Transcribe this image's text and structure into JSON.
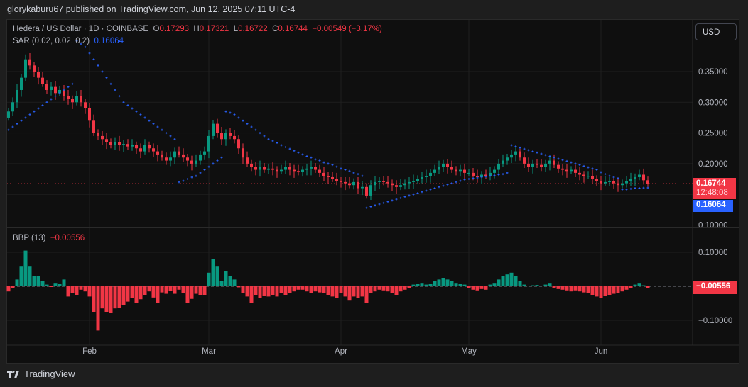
{
  "header": {
    "published": "glorykaburu67 published on TradingView.com, Jun 12, 2025 07:11 UTC-4"
  },
  "legend": {
    "symbol": "Hedera / US Dollar · 1D · COINBASE",
    "o_label": "O",
    "o": "0.17293",
    "h_label": "H",
    "h": "0.17321",
    "l_label": "L",
    "l": "0.16722",
    "c_label": "C",
    "c": "0.16744",
    "change": "−0.00549 (−3.17%)",
    "sar_label": "SAR (0.02, 0.02, 0.2)",
    "sar_value": "0.16064",
    "bbp_label": "BBP (13)",
    "bbp_value": "−0.00556"
  },
  "currency_button": "USD",
  "price_tag": {
    "value": "0.16744",
    "countdown": "12:48:08"
  },
  "sar_tag": "0.16064",
  "bbp_tag": "−0.00556",
  "footer": {
    "brand": "TradingView"
  },
  "colors": {
    "up": "#089981",
    "down": "#f23645",
    "sar": "#2962ff",
    "bg": "#0f0f0f"
  },
  "chart_data": {
    "type": "candlestick",
    "start_date": "2025-01-13",
    "interval": "1D",
    "price_axis": {
      "ticks": [
        "0.10000",
        "0.20000",
        "0.25000",
        "0.30000",
        "0.35000"
      ],
      "tick_values": [
        0.1,
        0.2,
        0.25,
        0.3,
        0.35
      ]
    },
    "bbp_axis": {
      "ticks": [
        "0.10000",
        "−0.10000"
      ],
      "tick_values": [
        0.1,
        -0.1
      ]
    },
    "time_axis": {
      "ticks": [
        "Feb",
        "Mar",
        "Apr",
        "May",
        "Jun"
      ],
      "tick_day_index": [
        19,
        47,
        78,
        108,
        139
      ]
    },
    "close": [
      0.285,
      0.3,
      0.32,
      0.34,
      0.37,
      0.36,
      0.35,
      0.34,
      0.33,
      0.32,
      0.325,
      0.315,
      0.32,
      0.31,
      0.305,
      0.3,
      0.31,
      0.3,
      0.29,
      0.27,
      0.25,
      0.245,
      0.24,
      0.235,
      0.23,
      0.235,
      0.23,
      0.232,
      0.228,
      0.23,
      0.225,
      0.22,
      0.23,
      0.225,
      0.22,
      0.215,
      0.21,
      0.205,
      0.21,
      0.22,
      0.215,
      0.21,
      0.205,
      0.2,
      0.205,
      0.215,
      0.22,
      0.245,
      0.265,
      0.25,
      0.24,
      0.25,
      0.245,
      0.24,
      0.225,
      0.21,
      0.2,
      0.195,
      0.19,
      0.195,
      0.19,
      0.192,
      0.19,
      0.188,
      0.19,
      0.195,
      0.19,
      0.188,
      0.186,
      0.19,
      0.192,
      0.195,
      0.19,
      0.185,
      0.18,
      0.178,
      0.175,
      0.172,
      0.17,
      0.168,
      0.165,
      0.17,
      0.16,
      0.162,
      0.148,
      0.165,
      0.17,
      0.172,
      0.17,
      0.168,
      0.165,
      0.162,
      0.165,
      0.168,
      0.17,
      0.172,
      0.175,
      0.178,
      0.18,
      0.185,
      0.19,
      0.195,
      0.2,
      0.195,
      0.19,
      0.188,
      0.19,
      0.185,
      0.185,
      0.18,
      0.178,
      0.182,
      0.18,
      0.185,
      0.19,
      0.2,
      0.205,
      0.21,
      0.215,
      0.22,
      0.21,
      0.2,
      0.195,
      0.2,
      0.198,
      0.195,
      0.2,
      0.205,
      0.198,
      0.192,
      0.19,
      0.188,
      0.19,
      0.185,
      0.182,
      0.18,
      0.18,
      0.175,
      0.172,
      0.168,
      0.17,
      0.172,
      0.168,
      0.165,
      0.168,
      0.172,
      0.175,
      0.178,
      0.182,
      0.17293,
      0.16744
    ],
    "sar": [
      0.255,
      0.26,
      0.265,
      0.27,
      0.275,
      0.28,
      0.285,
      0.29,
      0.295,
      0.3,
      0.305,
      0.31,
      0.315,
      0.32,
      0.325,
      0.33,
      0.4,
      0.395,
      0.39,
      0.38,
      0.37,
      0.36,
      0.35,
      0.34,
      0.33,
      0.32,
      0.31,
      0.3,
      0.295,
      0.29,
      0.285,
      0.28,
      0.275,
      0.27,
      0.265,
      0.26,
      0.255,
      0.25,
      0.245,
      0.24,
      0.17,
      0.172,
      0.175,
      0.178,
      0.18,
      0.185,
      0.19,
      0.195,
      0.2,
      0.205,
      0.21,
      0.285,
      0.283,
      0.28,
      0.275,
      0.27,
      0.265,
      0.26,
      0.255,
      0.25,
      0.245,
      0.24,
      0.237,
      0.234,
      0.23,
      0.227,
      0.224,
      0.221,
      0.218,
      0.215,
      0.212,
      0.21,
      0.207,
      0.205,
      0.202,
      0.2,
      0.198,
      0.195,
      0.192,
      0.19,
      0.188,
      0.185,
      0.183,
      0.18,
      0.128,
      0.13,
      0.132,
      0.134,
      0.136,
      0.138,
      0.14,
      0.142,
      0.144,
      0.146,
      0.148,
      0.15,
      0.152,
      0.154,
      0.156,
      0.158,
      0.16,
      0.162,
      0.164,
      0.166,
      0.168,
      0.17,
      0.172,
      0.174,
      0.175,
      0.176,
      0.177,
      0.178,
      0.179,
      0.18,
      0.181,
      0.182,
      0.183,
      0.185,
      0.23,
      0.228,
      0.226,
      0.224,
      0.222,
      0.22,
      0.218,
      0.216,
      0.214,
      0.212,
      0.21,
      0.208,
      0.206,
      0.204,
      0.202,
      0.2,
      0.198,
      0.196,
      0.194,
      0.192,
      0.19,
      0.186,
      0.183,
      0.18,
      0.178,
      0.176,
      0.158,
      0.158,
      0.159,
      0.16,
      0.16,
      0.1605,
      0.16064
    ],
    "bbp": [
      -0.015,
      -0.005,
      0.02,
      0.06,
      0.105,
      0.06,
      0.03,
      0.03,
      0.015,
      0.005,
      -0.002,
      0.01,
      0.008,
      0.02,
      -0.03,
      -0.02,
      -0.025,
      -0.01,
      -0.015,
      -0.03,
      -0.075,
      -0.13,
      -0.065,
      -0.075,
      -0.078,
      -0.065,
      -0.063,
      -0.055,
      -0.045,
      -0.035,
      -0.05,
      -0.038,
      -0.025,
      -0.015,
      -0.033,
      -0.05,
      -0.018,
      -0.022,
      -0.013,
      -0.022,
      -0.01,
      -0.02,
      -0.05,
      -0.037,
      -0.022,
      -0.025,
      -0.025,
      0.04,
      0.08,
      0.06,
      0.015,
      0.045,
      0.03,
      0.02,
      -0.003,
      -0.02,
      -0.03,
      -0.05,
      -0.025,
      -0.035,
      -0.028,
      -0.03,
      -0.025,
      -0.03,
      -0.02,
      -0.025,
      -0.02,
      -0.015,
      -0.01,
      -0.01,
      -0.015,
      -0.02,
      -0.015,
      -0.018,
      -0.02,
      -0.025,
      -0.03,
      -0.035,
      -0.02,
      -0.03,
      -0.04,
      -0.03,
      -0.035,
      -0.03,
      -0.05,
      -0.02,
      -0.015,
      -0.01,
      -0.012,
      -0.015,
      -0.02,
      -0.025,
      -0.015,
      -0.01,
      -0.005,
      0.005,
      0.008,
      0.01,
      0.005,
      0.008,
      0.015,
      0.02,
      0.025,
      0.02,
      0.015,
      0.01,
      0.008,
      0.005,
      -0.005,
      -0.01,
      -0.012,
      -0.008,
      -0.01,
      0.005,
      0.01,
      0.02,
      0.03,
      0.035,
      0.04,
      0.03,
      0.015,
      0.005,
      0.002,
      0.003,
      0.004,
      0.002,
      0.005,
      0.01,
      -0.005,
      -0.008,
      -0.01,
      -0.012,
      -0.015,
      -0.012,
      -0.015,
      -0.018,
      -0.02,
      -0.025,
      -0.03,
      -0.035,
      -0.028,
      -0.025,
      -0.022,
      -0.02,
      -0.015,
      -0.01,
      -0.005,
      0.005,
      0.01,
      0.003,
      -0.00556
    ]
  }
}
